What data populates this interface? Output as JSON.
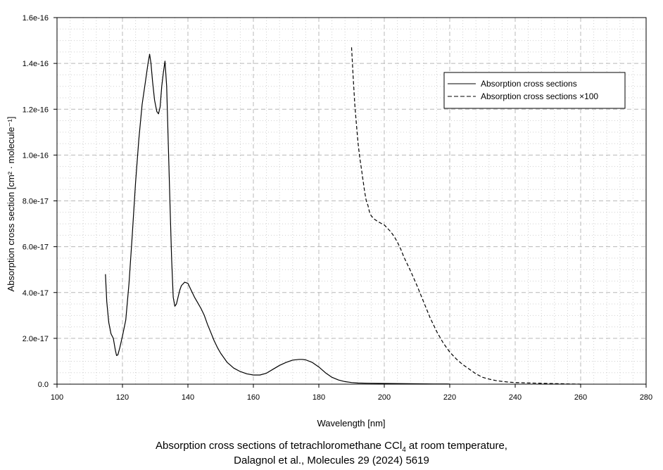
{
  "chart_data": {
    "type": "line",
    "xlabel": "Wavelength [nm]",
    "ylabel": "Absorption cross section [cm² · molecule⁻¹]",
    "xlim": [
      100,
      280
    ],
    "ylim": [
      0,
      1.6e-16
    ],
    "xticks": [
      100,
      120,
      140,
      160,
      180,
      200,
      220,
      240,
      260,
      280
    ],
    "xtick_labels": [
      "100",
      "120",
      "140",
      "160",
      "180",
      "200",
      "220",
      "240",
      "260",
      "280"
    ],
    "yticks": [
      0,
      2e-17,
      4e-17,
      6e-17,
      8e-17,
      1e-16,
      1.2e-16,
      1.4e-16,
      1.6e-16
    ],
    "ytick_labels": [
      "0.0",
      "2.0e-17",
      "4.0e-17",
      "6.0e-17",
      "8.0e-17",
      "1.0e-16",
      "1.2e-16",
      "1.4e-16",
      "1.6e-16"
    ],
    "grid": true,
    "legend_position": "top-right",
    "series": [
      {
        "name": "Absorption cross sections",
        "style": "solid",
        "color": "#000000",
        "x": [
          114.8,
          115.2,
          115.8,
          116.5,
          117.2,
          117.8,
          118.2,
          118.6,
          119.2,
          120,
          121,
          122,
          123,
          124,
          125,
          126,
          127,
          127.8,
          128.3,
          128.7,
          129.2,
          129.8,
          130.5,
          131,
          131.5,
          132,
          132.5,
          133,
          133.5,
          134,
          134.5,
          135,
          135.5,
          136,
          136.5,
          137,
          137.5,
          138,
          139,
          140,
          141,
          142,
          143,
          144,
          145,
          146,
          147,
          148,
          149,
          150,
          152,
          154,
          156,
          158,
          160,
          162,
          164,
          166,
          168,
          170,
          172,
          174,
          175,
          176,
          178,
          180,
          182,
          184,
          186,
          188,
          190,
          192,
          195,
          200,
          205,
          210,
          215,
          220
        ],
        "y": [
          4.8e-17,
          3.6e-17,
          2.7e-17,
          2.2e-17,
          2e-17,
          1.5e-17,
          1.25e-17,
          1.28e-17,
          1.6e-17,
          2.1e-17,
          2.8e-17,
          4.4e-17,
          6.5e-17,
          8.8e-17,
          1.07e-16,
          1.22e-16,
          1.32e-16,
          1.4e-16,
          1.44e-16,
          1.4e-16,
          1.32e-16,
          1.24e-16,
          1.19e-16,
          1.18e-16,
          1.21e-16,
          1.3e-16,
          1.36e-16,
          1.41e-16,
          1.3e-16,
          1.05e-16,
          8e-17,
          5.5e-17,
          3.8e-17,
          3.4e-17,
          3.5e-17,
          3.8e-17,
          4.1e-17,
          4.3e-17,
          4.45e-17,
          4.4e-17,
          4.1e-17,
          3.8e-17,
          3.55e-17,
          3.3e-17,
          3e-17,
          2.6e-17,
          2.25e-17,
          1.9e-17,
          1.6e-17,
          1.35e-17,
          9.5e-18,
          7e-18,
          5.5e-18,
          4.5e-18,
          4e-18,
          4e-18,
          4.8e-18,
          6.5e-18,
          8.2e-18,
          9.5e-18,
          1.05e-17,
          1.08e-17,
          1.08e-17,
          1.06e-17,
          9.5e-18,
          7.5e-18,
          5e-18,
          3e-18,
          1.8e-18,
          1.1e-18,
          7e-19,
          5e-19,
          4e-19,
          3e-19,
          2.5e-19,
          1.5e-19,
          1e-19,
          5e-20
        ]
      },
      {
        "name": "Absorption cross sections ×100",
        "style": "dashed",
        "color": "#000000",
        "x": [
          190,
          190.5,
          191,
          191.5,
          192,
          192.5,
          193,
          193.5,
          194,
          194.5,
          195,
          195.5,
          196,
          197,
          198,
          199,
          200,
          201,
          202,
          203,
          204,
          205,
          206,
          207,
          208,
          210,
          212,
          214,
          216,
          218,
          220,
          222,
          224,
          226,
          228,
          230,
          232,
          234,
          236,
          238,
          240,
          245,
          250,
          255,
          260
        ],
        "y": [
          1.47e-16,
          1.34e-16,
          1.22e-16,
          1.13e-16,
          1.05e-16,
          9.9e-17,
          9.4e-17,
          8.9e-17,
          8.4e-17,
          8e-17,
          7.8e-17,
          7.5e-17,
          7.35e-17,
          7.2e-17,
          7.1e-17,
          7.02e-17,
          6.95e-17,
          6.8e-17,
          6.65e-17,
          6.45e-17,
          6.2e-17,
          5.9e-17,
          5.55e-17,
          5.25e-17,
          4.95e-17,
          4.3e-17,
          3.6e-17,
          2.9e-17,
          2.3e-17,
          1.8e-17,
          1.4e-17,
          1.1e-17,
          8.5e-18,
          6.5e-18,
          4.5e-18,
          3e-18,
          2.2e-18,
          1.6e-18,
          1.2e-18,
          9e-19,
          7e-19,
          5e-19,
          3e-19,
          1.5e-19,
          0
        ]
      }
    ],
    "caption_line1_prefix": "Absorption cross sections of tetrachloromethane CCl",
    "caption_line1_subscript": "4",
    "caption_line1_suffix": " at room temperature,",
    "caption_line2": "Dalagnol et al., Molecules 29 (2024) 5619"
  }
}
